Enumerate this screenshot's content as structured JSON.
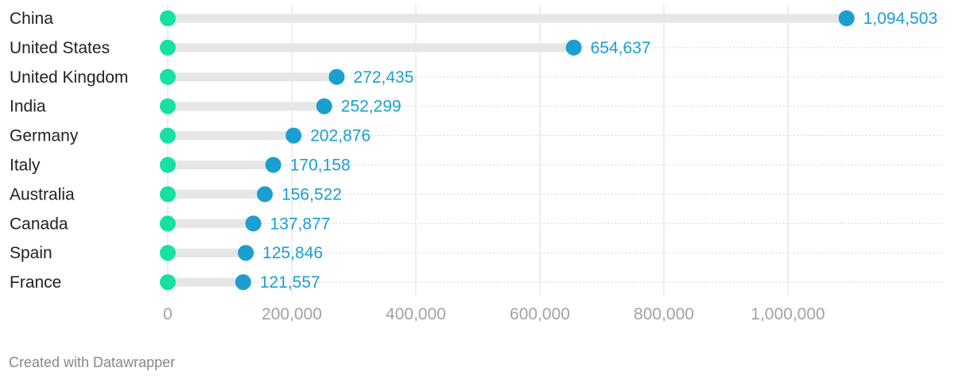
{
  "chart_data": {
    "type": "dot-range",
    "categories": [
      "China",
      "United States",
      "United Kingdom",
      "India",
      "Germany",
      "Italy",
      "Australia",
      "Canada",
      "Spain",
      "France"
    ],
    "start_values": [
      0,
      0,
      0,
      0,
      0,
      0,
      0,
      0,
      0,
      0
    ],
    "values": [
      1094503,
      654637,
      272435,
      252299,
      202876,
      170158,
      156522,
      137877,
      125846,
      121557
    ],
    "value_labels": [
      "1,094,503",
      "654,637",
      "272,435",
      "252,299",
      "202,876",
      "170,158",
      "156,522",
      "137,877",
      "125,846",
      "121,557"
    ],
    "xlim": [
      0,
      1250000
    ],
    "x_ticks": [
      0,
      200000,
      400000,
      600000,
      800000,
      1000000
    ],
    "x_tick_labels": [
      "0",
      "200,000",
      "400,000",
      "600,000",
      "800,000",
      "1,000,000"
    ],
    "grid": true,
    "colors": {
      "start_dot": "#16e0a4",
      "end_dot": "#1a9fd0",
      "value_label": "#1a9fd0",
      "range_bar": "#e6e6e6",
      "gridline": "#dddddd",
      "row_rule": "#c9c9c9"
    }
  },
  "footer": {
    "credit": "Created with Datawrapper"
  }
}
